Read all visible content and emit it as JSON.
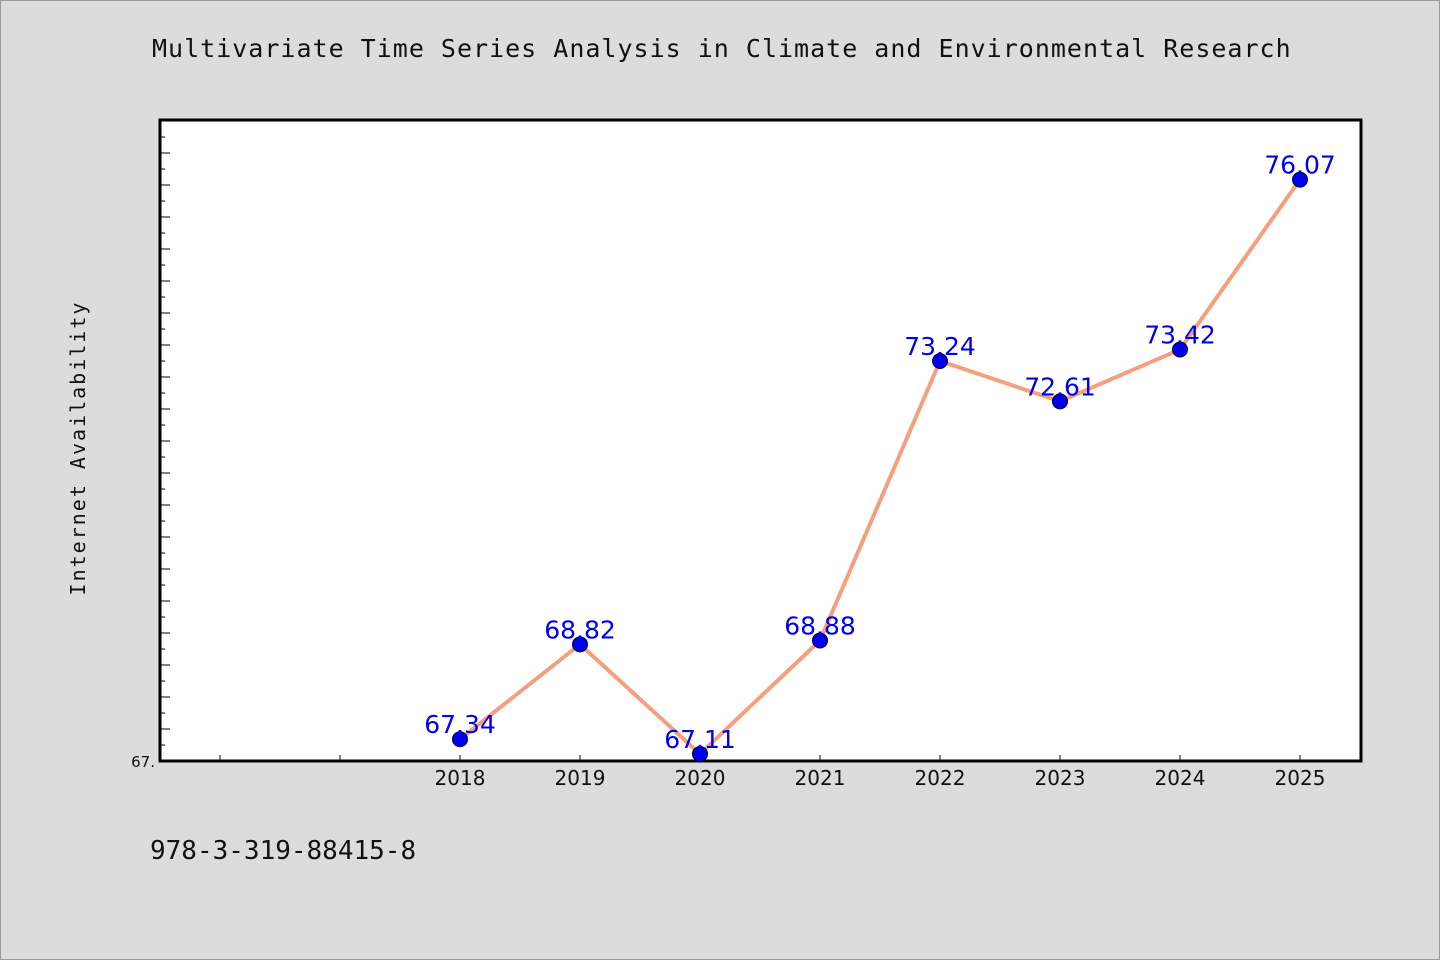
{
  "chart_data": {
    "type": "line",
    "title": "Multivariate Time Series Analysis in Climate and Environmental Research",
    "xlabel": "",
    "ylabel": "Internet Availability",
    "categories": [
      "2018",
      "2019",
      "2020",
      "2021",
      "2022",
      "2023",
      "2024",
      "2025"
    ],
    "series": [
      {
        "values": [
          67.34,
          68.82,
          67.11,
          68.88,
          73.24,
          72.61,
          73.42,
          76.07
        ],
        "data_labels": [
          "67.34",
          "68.82",
          "67.11",
          "68.88",
          "73.24",
          "72.61",
          "73.42",
          "76.07"
        ],
        "line_color": "#f4a07e",
        "marker_color": "#0000ee"
      }
    ],
    "ylim": [
      67.0,
      77.0
    ],
    "ytick_label": "67.",
    "grid": false,
    "legend": "none"
  },
  "footer": {
    "isbn": "978-3-319-88415-8"
  },
  "colors": {
    "background": "#dcdcdc",
    "plot_background": "#ffffff",
    "line": "#f4a07e",
    "marker": "#0000ee",
    "label": "#0000ee"
  }
}
